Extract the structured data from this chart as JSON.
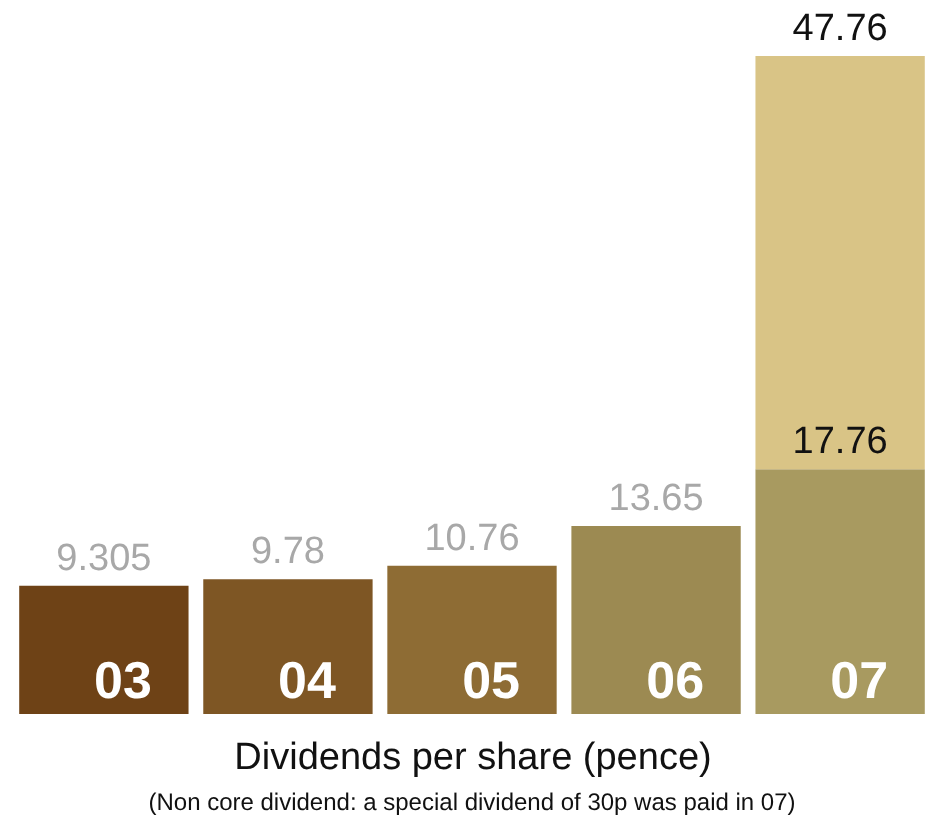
{
  "chart_data": {
    "type": "bar",
    "stacked": true,
    "categories": [
      "03",
      "04",
      "05",
      "06",
      "07"
    ],
    "series": [
      {
        "colors": [
          "#6e4216",
          "#7e5624",
          "#8e6c34",
          "#9c8a52",
          "#a89a60"
        ],
        "values": [
          9.305,
          9.78,
          10.76,
          13.65,
          17.76
        ],
        "value_labels": [
          "9.305",
          "9.78",
          "10.76",
          "13.65",
          "17.76"
        ]
      },
      {
        "color": "#d9c486",
        "values": [
          null,
          null,
          null,
          null,
          30
        ]
      }
    ],
    "totals": [
      null,
      null,
      null,
      null,
      "47.76"
    ],
    "xlabel": "Dividends per share (pence)",
    "annotations": [
      "(Non core dividend: a special dividend of 30p was paid in 07)"
    ],
    "grid": false
  }
}
